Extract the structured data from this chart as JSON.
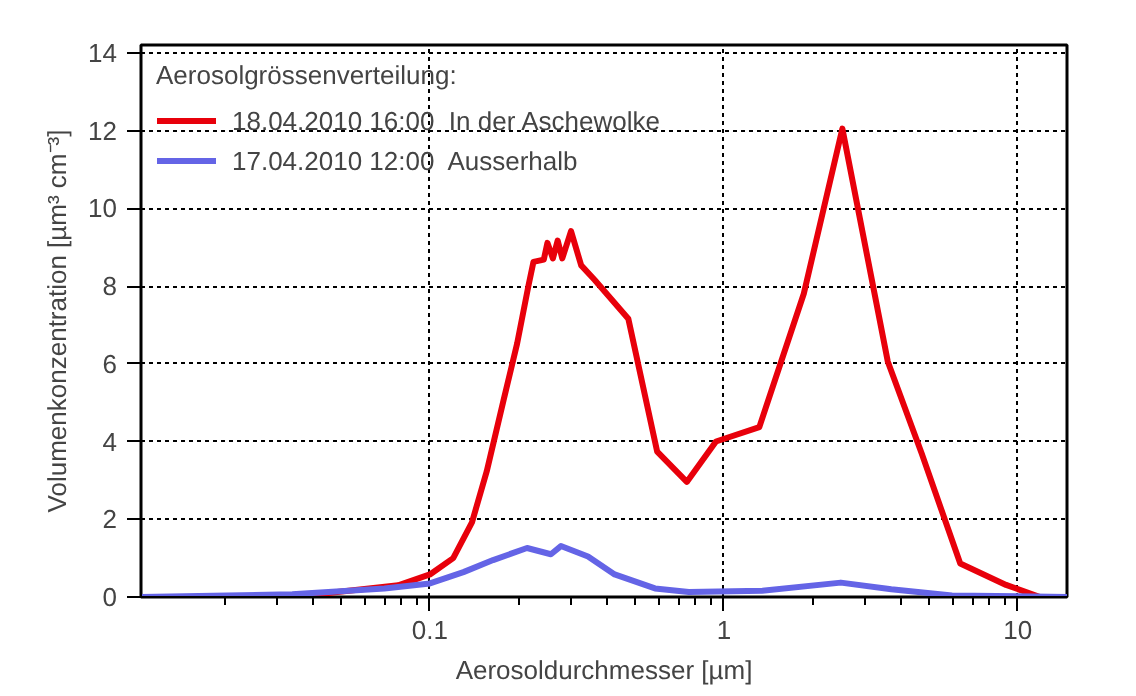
{
  "chart_data": {
    "type": "line",
    "xlabel": "Aerosoldurchmesser [µm]",
    "ylabel": "Volumenkonzentration [µm³ cm⁻³]",
    "legend_title": "Aerosolgrössenverteilung:",
    "log": "x",
    "grid": true,
    "legend": "top left",
    "line_style": "solid",
    "marker": "none",
    "xlim": [
      0.0104,
      14.7
    ],
    "ylim": [
      0,
      14.2
    ],
    "xticks": [
      {
        "value": 0.02,
        "label": null
      },
      {
        "value": 0.03,
        "label": null
      },
      {
        "value": 0.04,
        "label": null
      },
      {
        "value": 0.05,
        "label": null
      },
      {
        "value": 0.06,
        "label": null
      },
      {
        "value": 0.07,
        "label": null
      },
      {
        "value": 0.08,
        "label": null
      },
      {
        "value": 0.09,
        "label": null
      },
      0.1,
      {
        "value": 0.2,
        "label": null
      },
      {
        "value": 0.3,
        "label": null
      },
      {
        "value": 0.4,
        "label": null
      },
      {
        "value": 0.5,
        "label": null
      },
      {
        "value": 0.6,
        "label": null
      },
      {
        "value": 0.7,
        "label": null
      },
      {
        "value": 0.8,
        "label": null
      },
      {
        "value": 0.9,
        "label": null
      },
      1,
      {
        "value": 2,
        "label": null
      },
      {
        "value": 3,
        "label": null
      },
      {
        "value": 4,
        "label": null
      },
      {
        "value": 5,
        "label": null
      },
      {
        "value": 6,
        "label": null
      },
      {
        "value": 7,
        "label": null
      },
      {
        "value": 8,
        "label": null
      },
      {
        "value": 9,
        "label": null
      },
      10
    ],
    "yticks": [
      0,
      2,
      4,
      6,
      8,
      10,
      12,
      14
    ],
    "series": [
      {
        "name": "18.04.2010 16:00  In der Aschewolke",
        "color": "#e8000b",
        "x": [
          0.034,
          0.078,
          0.1,
          0.12,
          0.139,
          0.156,
          0.178,
          0.198,
          0.216,
          0.225,
          0.244,
          0.251,
          0.262,
          0.272,
          0.282,
          0.302,
          0.327,
          0.363,
          0.473,
          0.593,
          0.748,
          0.94,
          1.32,
          1.87,
          2.53,
          3.61,
          4.71,
          6.37,
          9.12,
          11.9
        ],
        "values": [
          0,
          0.3,
          0.58,
          1.0,
          1.92,
          3.23,
          5.06,
          6.52,
          7.98,
          8.62,
          8.68,
          9.11,
          8.71,
          9.17,
          8.71,
          9.41,
          8.53,
          8.16,
          7.16,
          3.74,
          2.96,
          4.0,
          4.37,
          7.8,
          12.05,
          6.06,
          3.69,
          0.86,
          0.31,
          0
        ]
      },
      {
        "name": "17.04.2010 12:00  Ausserhalb",
        "color": "#6464e6",
        "x": [
          0.0104,
          0.034,
          0.07,
          0.1,
          0.13,
          0.164,
          0.214,
          0.258,
          0.279,
          0.345,
          0.425,
          0.583,
          0.76,
          1.35,
          2.5,
          3.71,
          5.97,
          14.7
        ],
        "values": [
          0,
          0.07,
          0.22,
          0.35,
          0.64,
          0.95,
          1.26,
          1.1,
          1.31,
          1.04,
          0.58,
          0.22,
          0.13,
          0.16,
          0.37,
          0.2,
          0.04,
          0
        ]
      }
    ]
  }
}
